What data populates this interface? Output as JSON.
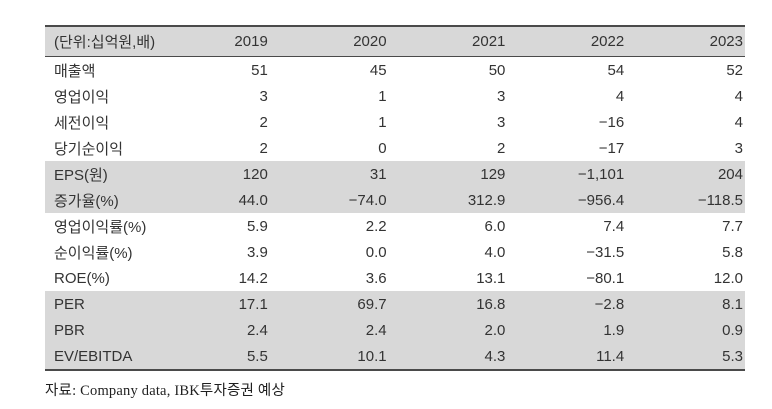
{
  "table": {
    "unit_label": "(단위:십억원,배)",
    "columns": [
      "2019",
      "2020",
      "2021",
      "2022",
      "2023"
    ],
    "rows": [
      {
        "label": "매출액",
        "values": [
          "51",
          "45",
          "50",
          "54",
          "52"
        ],
        "shaded": false
      },
      {
        "label": "영업이익",
        "values": [
          "3",
          "1",
          "3",
          "4",
          "4"
        ],
        "shaded": false
      },
      {
        "label": "세전이익",
        "values": [
          "2",
          "1",
          "3",
          "−16",
          "4"
        ],
        "shaded": false
      },
      {
        "label": "당기순이익",
        "values": [
          "2",
          "0",
          "2",
          "−17",
          "3"
        ],
        "shaded": false
      },
      {
        "label": "EPS(원)",
        "values": [
          "120",
          "31",
          "129",
          "−1,101",
          "204"
        ],
        "shaded": true
      },
      {
        "label": "증가율(%)",
        "values": [
          "44.0",
          "−74.0",
          "312.9",
          "−956.4",
          "−118.5"
        ],
        "shaded": true
      },
      {
        "label": "영업이익률(%)",
        "values": [
          "5.9",
          "2.2",
          "6.0",
          "7.4",
          "7.7"
        ],
        "shaded": false
      },
      {
        "label": "순이익률(%)",
        "values": [
          "3.9",
          "0.0",
          "4.0",
          "−31.5",
          "5.8"
        ],
        "shaded": false
      },
      {
        "label": "ROE(%)",
        "values": [
          "14.2",
          "3.6",
          "13.1",
          "−80.1",
          "12.0"
        ],
        "shaded": false
      },
      {
        "label": "PER",
        "values": [
          "17.1",
          "69.7",
          "16.8",
          "−2.8",
          "8.1"
        ],
        "shaded": true
      },
      {
        "label": "PBR",
        "values": [
          "2.4",
          "2.4",
          "2.0",
          "1.9",
          "0.9"
        ],
        "shaded": true
      },
      {
        "label": "EV/EBITDA",
        "values": [
          "5.5",
          "10.1",
          "4.3",
          "11.4",
          "5.3"
        ],
        "shaded": true
      }
    ]
  },
  "footer": {
    "source_text": "자료: Company data, IBK투자증권 예상"
  },
  "colors": {
    "shaded_row_bg": "#d8d8d8",
    "table_border": "#4a4a4a",
    "text": "#333333"
  }
}
